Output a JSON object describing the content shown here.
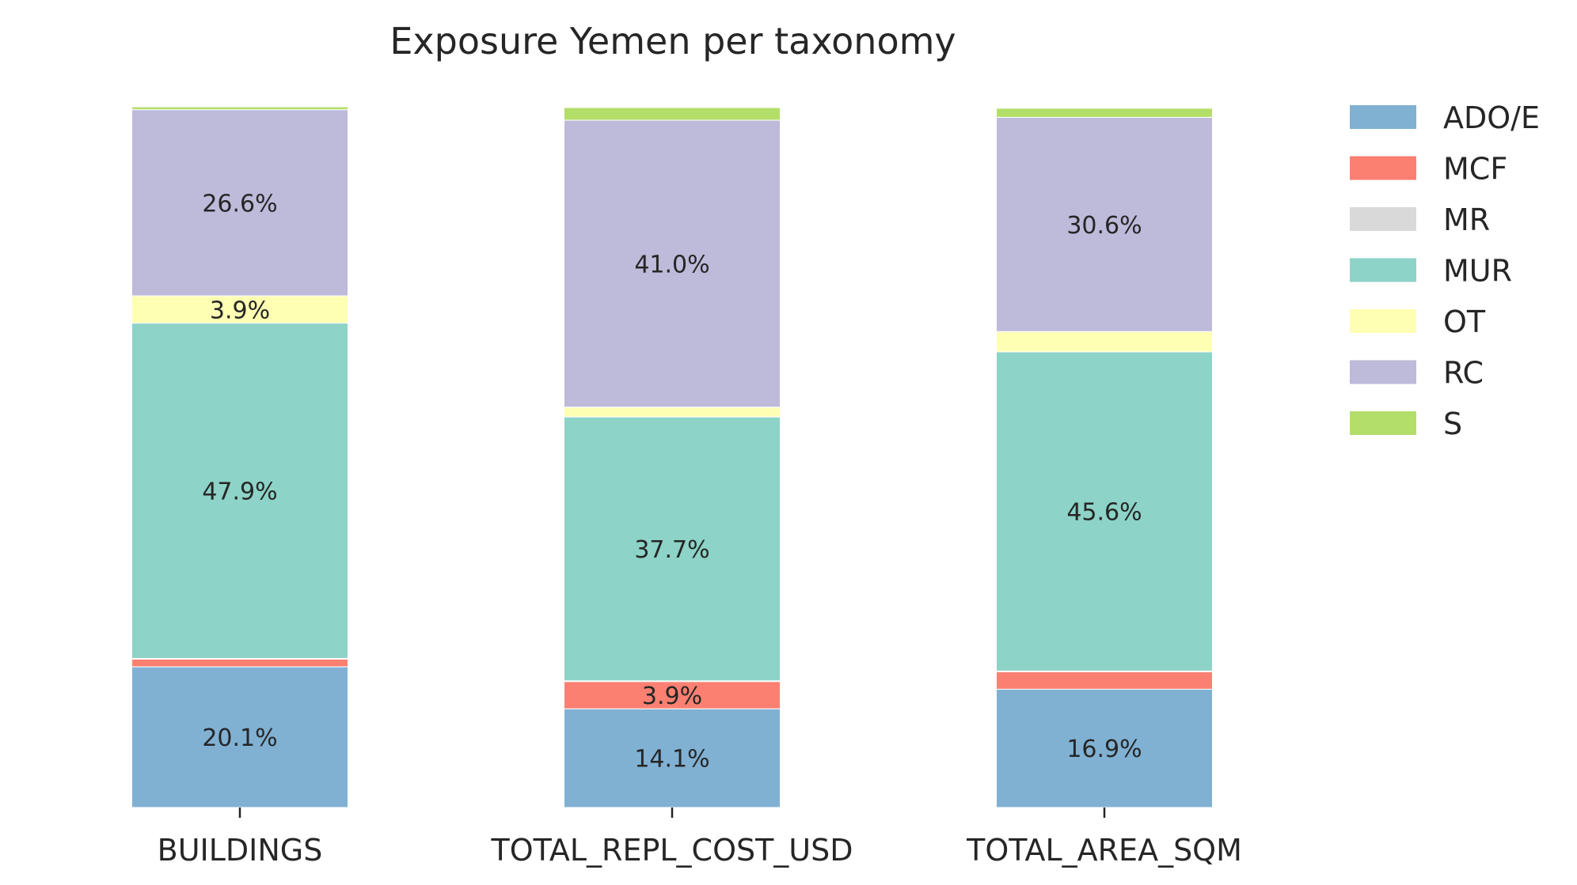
{
  "chart_data": {
    "type": "bar",
    "stacked": true,
    "normalized": true,
    "title": "Exposure Yemen per taxonomy",
    "xlabel": "",
    "ylabel": "",
    "ylim": [
      0,
      100
    ],
    "grid": false,
    "legend_position": "right",
    "categories": [
      "BUILDINGS",
      "TOTAL_REPL_COST_USD",
      "TOTAL_AREA_SQM"
    ],
    "series": [
      {
        "name": "ADO/E",
        "color": "#80b1d3",
        "values": [
          20.1,
          14.1,
          16.9
        ],
        "labels": [
          "20.1%",
          "14.1%",
          "16.9%"
        ]
      },
      {
        "name": "MCF",
        "color": "#fb8072",
        "values": [
          1.1,
          3.9,
          2.5
        ],
        "labels": [
          "",
          "3.9%",
          ""
        ]
      },
      {
        "name": "MR",
        "color": "#d9d9d9",
        "values": [
          0.1,
          0.1,
          0.1
        ],
        "labels": [
          "",
          "",
          ""
        ]
      },
      {
        "name": "MUR",
        "color": "#8dd3c7",
        "values": [
          47.9,
          37.7,
          45.6
        ],
        "labels": [
          "47.9%",
          "37.7%",
          "45.6%"
        ]
      },
      {
        "name": "OT",
        "color": "#ffffb3",
        "values": [
          3.9,
          1.4,
          2.9
        ],
        "labels": [
          "3.9%",
          "",
          ""
        ]
      },
      {
        "name": "RC",
        "color": "#bebada",
        "values": [
          26.6,
          41.0,
          30.6
        ],
        "labels": [
          "26.6%",
          "41.0%",
          "30.6%"
        ]
      },
      {
        "name": "S",
        "color": "#b3de69",
        "values": [
          0.4,
          1.8,
          1.3
        ],
        "labels": [
          "",
          "",
          ""
        ]
      }
    ]
  }
}
